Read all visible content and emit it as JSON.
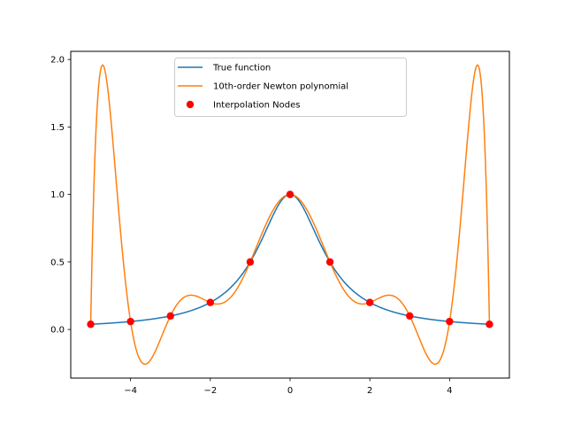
{
  "chart_data": {
    "type": "line",
    "xlim": [
      -5.5,
      5.5
    ],
    "ylim": [
      -0.36,
      2.06
    ],
    "xticks": [
      -4,
      -2,
      0,
      2,
      4
    ],
    "xtick_labels": [
      "−4",
      "−2",
      "0",
      "2",
      "4"
    ],
    "yticks": [
      0.0,
      0.5,
      1.0,
      1.5,
      2.0
    ],
    "ytick_labels": [
      "0.0",
      "0.5",
      "1.0",
      "1.5",
      "2.0"
    ],
    "grid": false,
    "legend_position": "upper-center",
    "legend": [
      {
        "label": "True function",
        "color": "#1f77b4",
        "kind": "line"
      },
      {
        "label": "10th-order Newton polynomial",
        "color": "#ff7f0e",
        "kind": "line"
      },
      {
        "label": "Interpolation Nodes",
        "color": "#ff0000",
        "kind": "marker"
      }
    ],
    "series": [
      {
        "name": "True function",
        "function": "1/(1+x^2)",
        "x_range": [
          -5,
          5
        ],
        "color": "#1f77b4"
      },
      {
        "name": "10th-order Newton polynomial",
        "interpolates": "Interpolation Nodes",
        "x_range": [
          -5,
          5
        ],
        "color": "#ff7f0e"
      },
      {
        "name": "Interpolation Nodes",
        "color": "#ff0000",
        "x": [
          -5,
          -4,
          -3,
          -2,
          -1,
          0,
          1,
          2,
          3,
          4,
          5
        ],
        "y": [
          0.0385,
          0.0588,
          0.1,
          0.2,
          0.5,
          1.0,
          0.5,
          0.2,
          0.1,
          0.0588,
          0.0385
        ]
      }
    ]
  }
}
